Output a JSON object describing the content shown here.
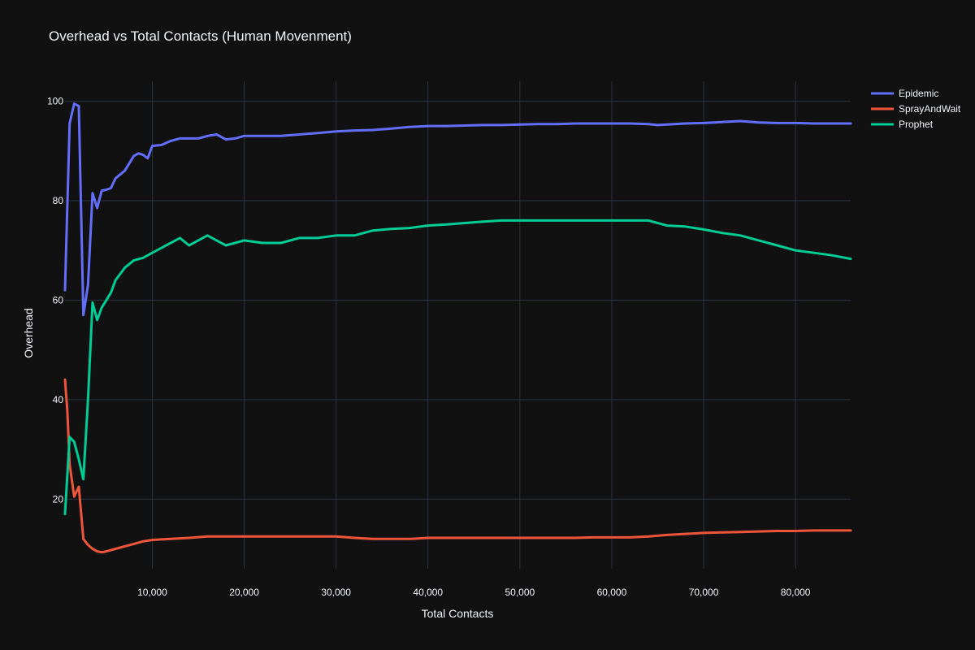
{
  "chart_data": {
    "type": "line",
    "title": "Overhead vs Total Contacts (Human Movenment)",
    "xlabel": "Total Contacts",
    "ylabel": "Overhead",
    "xlim": [
      500,
      86000
    ],
    "ylim": [
      6,
      104
    ],
    "xticks": [
      10000,
      20000,
      30000,
      40000,
      50000,
      60000,
      70000,
      80000
    ],
    "xtick_labels": [
      "10,000",
      "20,000",
      "30,000",
      "40,000",
      "50,000",
      "60,000",
      "70,000",
      "80,000"
    ],
    "yticks": [
      20,
      40,
      60,
      80,
      100
    ],
    "ytick_labels": [
      "20",
      "40",
      "60",
      "80",
      "100"
    ],
    "grid": true,
    "legend_position": "top-right",
    "series": [
      {
        "name": "Epidemic",
        "color": "#636efa",
        "x": [
          500,
          1000,
          1500,
          2000,
          2500,
          3000,
          3500,
          4000,
          4500,
          5000,
          5500,
          6000,
          7000,
          8000,
          8500,
          9000,
          9500,
          10000,
          11000,
          12000,
          13000,
          14000,
          15000,
          16000,
          17000,
          18000,
          19000,
          20000,
          22000,
          24000,
          26000,
          28000,
          30000,
          32000,
          34000,
          36000,
          38000,
          40000,
          42000,
          44000,
          46000,
          48000,
          50000,
          52000,
          54000,
          56000,
          58000,
          60000,
          62000,
          64000,
          65000,
          66000,
          68000,
          70000,
          72000,
          74000,
          76000,
          78000,
          80000,
          82000,
          84000,
          86000
        ],
        "y": [
          62,
          95.5,
          99.5,
          99,
          57,
          63,
          81.5,
          78.5,
          82,
          82.2,
          82.5,
          84.5,
          86,
          89,
          89.5,
          89.2,
          88.5,
          91,
          91.2,
          92,
          92.5,
          92.5,
          92.5,
          93,
          93.3,
          92.3,
          92.5,
          93,
          93,
          93,
          93.3,
          93.6,
          93.9,
          94.1,
          94.2,
          94.5,
          94.8,
          95,
          95,
          95.1,
          95.2,
          95.2,
          95.3,
          95.4,
          95.4,
          95.5,
          95.5,
          95.5,
          95.5,
          95.4,
          95.2,
          95.3,
          95.5,
          95.6,
          95.8,
          96,
          95.7,
          95.6,
          95.6,
          95.5,
          95.5,
          95.5
        ]
      },
      {
        "name": "SprayAndWait",
        "color": "#ef553b",
        "x": [
          500,
          750,
          1000,
          1500,
          2000,
          2500,
          3000,
          3500,
          4000,
          4500,
          5000,
          6000,
          7000,
          8000,
          9000,
          10000,
          12000,
          14000,
          16000,
          18000,
          20000,
          22000,
          24000,
          26000,
          28000,
          30000,
          32000,
          34000,
          36000,
          38000,
          40000,
          42000,
          44000,
          46000,
          48000,
          50000,
          52000,
          54000,
          56000,
          58000,
          60000,
          62000,
          64000,
          66000,
          68000,
          70000,
          72000,
          74000,
          76000,
          78000,
          80000,
          82000,
          84000,
          86000
        ],
        "y": [
          44,
          38,
          27,
          20.5,
          22.5,
          12,
          10.8,
          10,
          9.5,
          9.3,
          9.5,
          10,
          10.5,
          11,
          11.5,
          11.8,
          12,
          12.2,
          12.5,
          12.5,
          12.5,
          12.5,
          12.5,
          12.5,
          12.5,
          12.5,
          12.2,
          12,
          12,
          12,
          12.2,
          12.2,
          12.2,
          12.2,
          12.2,
          12.2,
          12.2,
          12.2,
          12.2,
          12.3,
          12.3,
          12.3,
          12.5,
          12.8,
          13,
          13.2,
          13.3,
          13.4,
          13.5,
          13.6,
          13.6,
          13.7,
          13.7,
          13.7
        ]
      },
      {
        "name": "Prophet",
        "color": "#00cc96",
        "x": [
          500,
          1000,
          1500,
          2000,
          2500,
          3000,
          3500,
          4000,
          4500,
          5000,
          5500,
          6000,
          7000,
          8000,
          9000,
          10000,
          11000,
          12000,
          13000,
          14000,
          15000,
          16000,
          17000,
          18000,
          19000,
          20000,
          22000,
          24000,
          26000,
          28000,
          30000,
          32000,
          34000,
          36000,
          38000,
          40000,
          42000,
          44000,
          46000,
          48000,
          50000,
          52000,
          54000,
          56000,
          58000,
          60000,
          62000,
          64000,
          66000,
          68000,
          70000,
          72000,
          74000,
          76000,
          78000,
          80000,
          82000,
          84000,
          86000
        ],
        "y": [
          17,
          32.5,
          31.5,
          28,
          24,
          40,
          59.5,
          56,
          58.5,
          60,
          61.5,
          64,
          66.5,
          68,
          68.5,
          69.5,
          70.5,
          71.5,
          72.5,
          71,
          72,
          73,
          72,
          71,
          71.5,
          72,
          71.5,
          71.5,
          72.5,
          72.5,
          73,
          73,
          74,
          74.3,
          74.5,
          75,
          75.2,
          75.5,
          75.8,
          76,
          76,
          76,
          76,
          76,
          76,
          76,
          76,
          76,
          75,
          74.8,
          74.2,
          73.5,
          73,
          72,
          71,
          70,
          69.5,
          69,
          68.3
        ]
      }
    ]
  }
}
